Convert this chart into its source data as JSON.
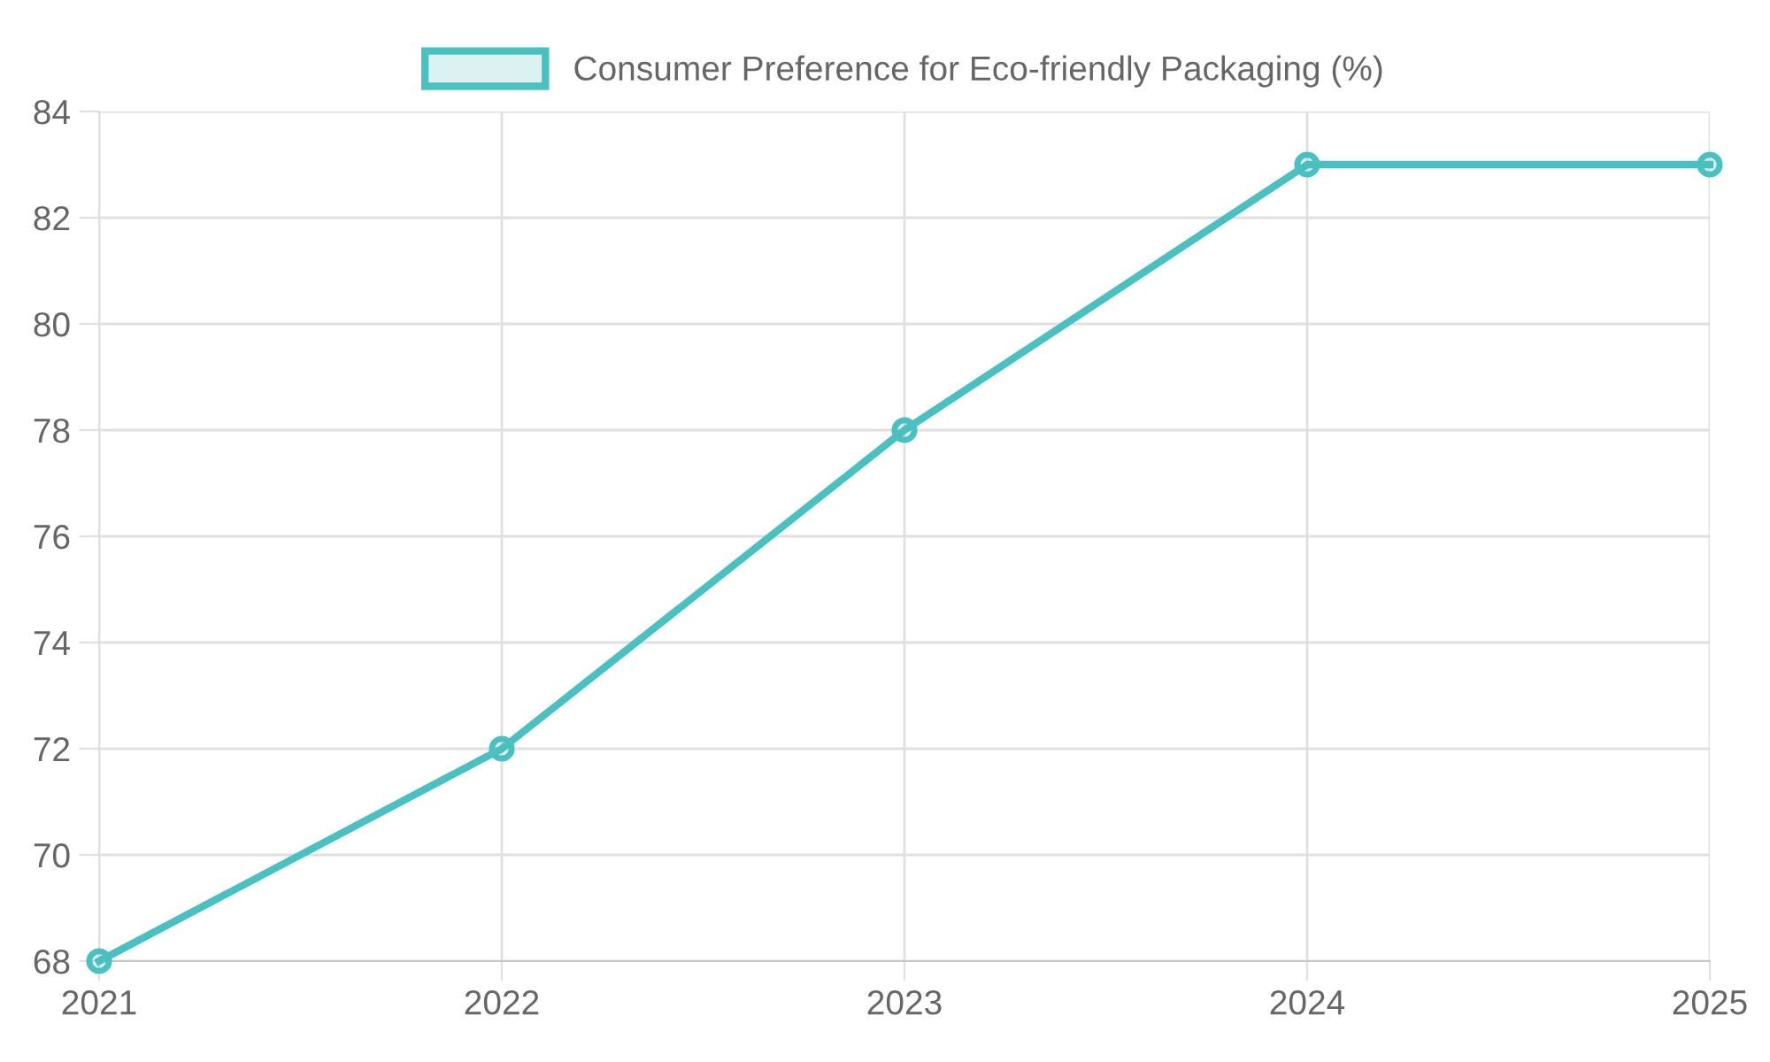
{
  "chart_data": {
    "type": "line",
    "categories": [
      "2021",
      "2022",
      "2023",
      "2024",
      "2025"
    ],
    "series": [
      {
        "name": "Consumer Preference for Eco-friendly Packaging (%)",
        "color": "#4bc0c0",
        "values": [
          68,
          72,
          78,
          83,
          83
        ]
      }
    ],
    "ylim": [
      68,
      84
    ],
    "yticks": [
      68,
      70,
      72,
      74,
      76,
      78,
      80,
      82,
      84
    ],
    "grid": true,
    "legend": "top",
    "marker": "circle",
    "line_style": "solid"
  }
}
